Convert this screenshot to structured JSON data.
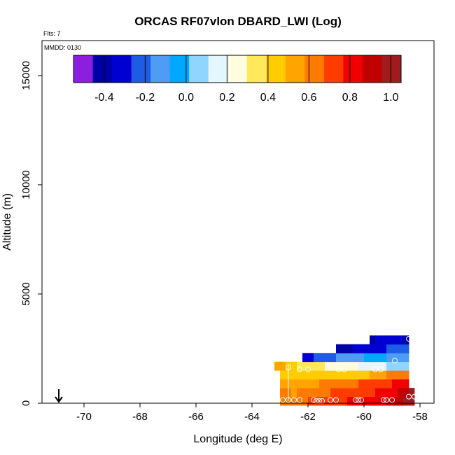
{
  "chart_data": {
    "type": "heatmap",
    "title": "ORCAS RF07vlon DBARD_LWI (Log)",
    "corner_note_top": "Flts: 7",
    "corner_note_box": "MMDD: 0130",
    "xlabel": "Longitude (deg E)",
    "ylabel": "Altitude (m)",
    "xlim": [
      -71.5,
      -57.5
    ],
    "ylim": [
      0,
      16600
    ],
    "x_ticks": [
      -70,
      -68,
      -66,
      -64,
      -62,
      -60,
      -58
    ],
    "x_tick_labels": [
      "-70",
      "-68",
      "-66",
      "-64",
      "-62",
      "-60",
      "-58"
    ],
    "y_ticks": [
      0,
      5000,
      10000,
      15000
    ],
    "y_tick_labels": [
      "0",
      "5000",
      "10000",
      "15000"
    ],
    "colorbar": {
      "range": [
        -0.55,
        1.05
      ],
      "ticks": [
        -0.4,
        -0.2,
        0.0,
        0.2,
        0.4,
        0.6,
        0.8,
        1.0
      ],
      "tick_labels": [
        "-0.4",
        "-0.2",
        "0.0",
        "0.2",
        "0.4",
        "0.6",
        "0.8",
        "1.0"
      ],
      "colors": [
        "#8b1fe0",
        "#0000a6",
        "#0000d2",
        "#1f5ce6",
        "#4f9cf5",
        "#00a8ff",
        "#8fd6ff",
        "#e4f6ff",
        "#fffce0",
        "#ffe95a",
        "#ffcc00",
        "#ffa400",
        "#ff7a00",
        "#ff3c00",
        "#f00000",
        "#c00000",
        "#a01c1c"
      ]
    },
    "arrow_marker": {
      "x": -70.9,
      "direction": "down"
    },
    "cell_width_deg": 0.2,
    "cell_height_m": 400,
    "series": [
      {
        "alt": 100,
        "x_start": -63.0,
        "values": [
          0.65,
          0.62,
          0.6,
          0.63,
          0.66,
          0.68,
          0.7,
          0.7,
          0.7,
          0.72,
          0.75,
          0.76,
          0.78,
          0.8,
          0.8,
          0.82,
          0.84,
          0.85,
          0.86,
          0.9,
          0.92,
          0.95,
          0.98,
          1.0
        ]
      },
      {
        "alt": 500,
        "x_start": -63.0,
        "values": [
          0.6,
          0.58,
          0.57,
          0.58,
          0.6,
          0.62,
          0.64,
          0.66,
          0.67,
          0.68,
          0.7,
          0.72,
          0.72,
          0.74,
          0.75,
          0.75,
          0.76,
          0.78,
          0.8,
          0.82,
          0.84,
          0.9,
          0.93,
          0.98
        ]
      },
      {
        "alt": 900,
        "x_start": -63.0,
        "values": [
          0.55,
          0.52,
          0.5,
          0.5,
          0.52,
          0.55,
          0.56,
          0.58,
          0.58,
          0.6,
          0.62,
          0.64,
          0.65,
          0.66,
          0.68,
          0.7,
          0.72,
          0.74,
          0.75,
          0.76,
          0.78,
          0.8,
          0.85
        ]
      },
      {
        "alt": 1300,
        "x_start": -63.0,
        "values": [
          0.48,
          0.45,
          0.42,
          0.42,
          0.44,
          0.46,
          0.48,
          0.48,
          0.46,
          0.44,
          0.42,
          0.4,
          0.4,
          0.42,
          0.45,
          0.48,
          0.5,
          0.52,
          0.55,
          0.58,
          0.6,
          0.62,
          0.65
        ]
      },
      {
        "alt": 1700,
        "x_start": -63.2,
        "values": [
          0.55,
          0.5,
          0.45,
          0.42,
          0.38,
          0.35,
          0.33,
          0.32,
          0.3,
          0.28,
          0.27,
          0.26,
          0.25,
          0.24,
          0.22,
          0.2,
          0.18,
          0.16,
          0.15,
          0.12,
          0.1,
          0.08,
          0.06,
          0.05
        ]
      },
      {
        "alt": 2100,
        "x_start": -62.2,
        "values": [
          -0.35,
          -0.3,
          -0.25,
          -0.22,
          -0.2,
          -0.18,
          -0.16,
          -0.15,
          -0.12,
          -0.1,
          -0.08,
          -0.06,
          -0.05,
          -0.04,
          -0.05,
          -0.08,
          -0.1,
          -0.12,
          -0.15
        ]
      },
      {
        "alt": 2500,
        "x_start": -61.0,
        "values": [
          -0.4,
          -0.4,
          -0.38,
          -0.36,
          -0.34,
          -0.32,
          -0.3,
          -0.3,
          -0.28,
          -0.26,
          -0.25,
          -0.24,
          -0.22
        ]
      },
      {
        "alt": 2900,
        "x_start": -59.8,
        "values": [
          -0.38,
          -0.36,
          -0.34,
          -0.33,
          -0.32,
          -0.3,
          -0.45
        ]
      }
    ],
    "obs_points": [
      {
        "x": -62.9,
        "y": 150
      },
      {
        "x": -62.7,
        "y": 150
      },
      {
        "x": -62.5,
        "y": 150
      },
      {
        "x": -62.3,
        "y": 150
      },
      {
        "x": -61.8,
        "y": 150
      },
      {
        "x": -61.7,
        "y": 100
      },
      {
        "x": -61.6,
        "y": 100
      },
      {
        "x": -61.5,
        "y": 100
      },
      {
        "x": -61.2,
        "y": 150
      },
      {
        "x": -61.0,
        "y": 150
      },
      {
        "x": -60.3,
        "y": 150
      },
      {
        "x": -60.2,
        "y": 150
      },
      {
        "x": -60.1,
        "y": 150
      },
      {
        "x": -59.3,
        "y": 150
      },
      {
        "x": -59.2,
        "y": 150
      },
      {
        "x": -59.0,
        "y": 150
      },
      {
        "x": -58.4,
        "y": 300
      },
      {
        "x": -58.2,
        "y": 300
      },
      {
        "x": -62.7,
        "y": 1650
      },
      {
        "x": -62.3,
        "y": 1550
      },
      {
        "x": -62.0,
        "y": 1550
      },
      {
        "x": -60.9,
        "y": 1550
      },
      {
        "x": -60.7,
        "y": 1550
      },
      {
        "x": -59.6,
        "y": 1550
      },
      {
        "x": -59.4,
        "y": 1550
      },
      {
        "x": -58.9,
        "y": 1950
      },
      {
        "x": -58.4,
        "y": 2950
      }
    ]
  }
}
